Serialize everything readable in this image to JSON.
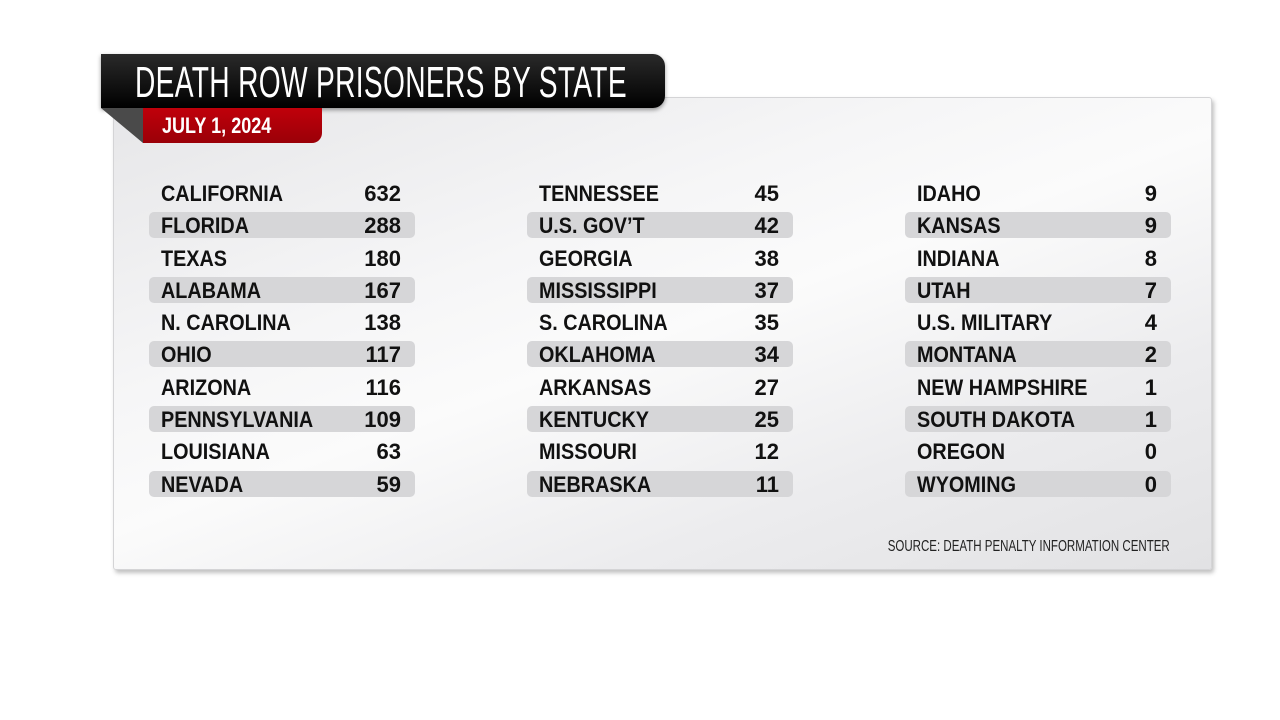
{
  "chart_data": {
    "type": "table",
    "title": "DEATH ROW PRISONERS BY STATE",
    "subtitle": "JULY 1, 2024",
    "source": "SOURCE: DEATH PENALTY INFORMATION CENTER",
    "columns": [
      [
        {
          "state": "CALIFORNIA",
          "value": "632"
        },
        {
          "state": "FLORIDA",
          "value": "288"
        },
        {
          "state": "TEXAS",
          "value": "180"
        },
        {
          "state": "ALABAMA",
          "value": "167"
        },
        {
          "state": "N. CAROLINA",
          "value": "138"
        },
        {
          "state": "OHIO",
          "value": "117"
        },
        {
          "state": "ARIZONA",
          "value": "116"
        },
        {
          "state": "PENNSYLVANIA",
          "value": "109"
        },
        {
          "state": "LOUISIANA",
          "value": "63"
        },
        {
          "state": "NEVADA",
          "value": "59"
        }
      ],
      [
        {
          "state": "TENNESSEE",
          "value": "45"
        },
        {
          "state": "U.S. GOV’T",
          "value": "42"
        },
        {
          "state": "GEORGIA",
          "value": "38"
        },
        {
          "state": "MISSISSIPPI",
          "value": "37"
        },
        {
          "state": "S. CAROLINA",
          "value": "35"
        },
        {
          "state": "OKLAHOMA",
          "value": "34"
        },
        {
          "state": "ARKANSAS",
          "value": "27"
        },
        {
          "state": "KENTUCKY",
          "value": "25"
        },
        {
          "state": "MISSOURI",
          "value": "12"
        },
        {
          "state": "NEBRASKA",
          "value": "11"
        }
      ],
      [
        {
          "state": "IDAHO",
          "value": "9"
        },
        {
          "state": "KANSAS",
          "value": "9"
        },
        {
          "state": "INDIANA",
          "value": "8"
        },
        {
          "state": "UTAH",
          "value": "7"
        },
        {
          "state": "U.S. MILITARY",
          "value": "4"
        },
        {
          "state": "MONTANA",
          "value": "2"
        },
        {
          "state": "NEW HAMPSHIRE",
          "value": "1"
        },
        {
          "state": "SOUTH DAKOTA",
          "value": "1"
        },
        {
          "state": "OREGON",
          "value": "0"
        },
        {
          "state": "WYOMING",
          "value": "0"
        }
      ]
    ],
    "colors": {
      "title_bar": "#000000",
      "date_tab": "#b0000a",
      "stripe": "#d6d6d8"
    }
  }
}
